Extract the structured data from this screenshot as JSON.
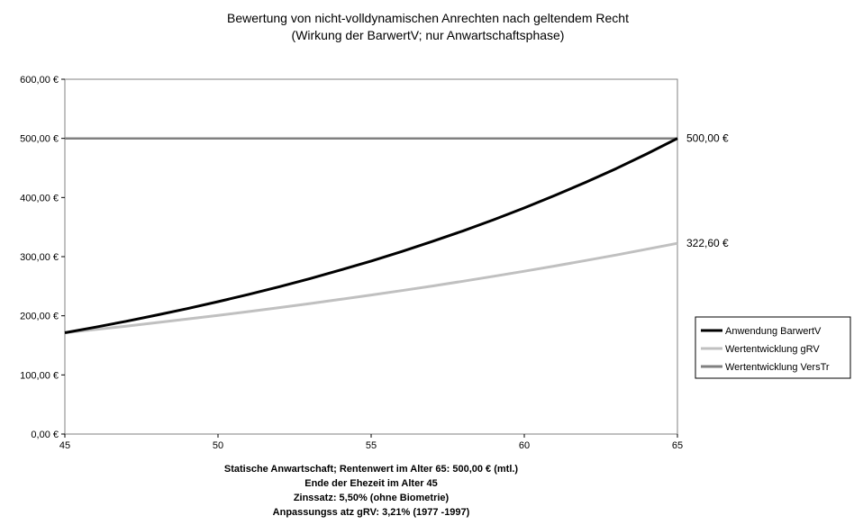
{
  "chart_data": {
    "type": "line",
    "title": "Bewertung von nicht-volldynamischen Anrechten nach geltendem Recht",
    "subtitle": "(Wirkung der BarwertV; nur Anwartschaftsphase)",
    "xlabel_lines": [
      "Statische Anwartschaft; Rentenwert im Alter 65: 500,00 € (mtl.)",
      "Ende der Ehezeit im Alter 45",
      "Zinssatz: 5,50% (ohne Biometrie)",
      "Anpassungss atz gRV: 3,21% (1977 -1997)"
    ],
    "xlim": [
      45,
      65
    ],
    "ylim": [
      0,
      600
    ],
    "x_ticks": [
      45,
      50,
      55,
      60,
      65
    ],
    "x_tick_labels": [
      "45",
      "50",
      "55",
      "60",
      "65"
    ],
    "y_ticks": [
      0,
      100,
      200,
      300,
      400,
      500,
      600
    ],
    "y_tick_labels": [
      "0,00 €",
      "100,00 €",
      "200,00 €",
      "300,00 €",
      "400,00 €",
      "500,00 €",
      "600,00 €"
    ],
    "grid": false,
    "legend_position": "right",
    "x": [
      45,
      46,
      47,
      48,
      49,
      50,
      51,
      52,
      53,
      54,
      55,
      56,
      57,
      58,
      59,
      60,
      61,
      62,
      63,
      64,
      65
    ],
    "series": [
      {
        "name": "Anwendung BarwertV",
        "color": "#000000",
        "values": [
          171.3,
          180.7,
          190.7,
          201.2,
          212.2,
          223.9,
          236.2,
          249.2,
          262.9,
          277.4,
          292.6,
          308.7,
          325.7,
          343.6,
          362.5,
          382.4,
          403.5,
          425.6,
          449.0,
          473.7,
          500.0
        ]
      },
      {
        "name": "Wertentwicklung gRV",
        "color": "#c0c0c0",
        "values": [
          171.3,
          176.8,
          182.5,
          188.4,
          194.4,
          200.7,
          207.1,
          213.8,
          220.7,
          227.8,
          235.1,
          242.6,
          250.4,
          258.5,
          266.8,
          275.4,
          284.2,
          293.4,
          302.8,
          312.6,
          322.6
        ]
      },
      {
        "name": "Wertentwicklung VersTr",
        "color": "#808080",
        "values": [
          500,
          500,
          500,
          500,
          500,
          500,
          500,
          500,
          500,
          500,
          500,
          500,
          500,
          500,
          500,
          500,
          500,
          500,
          500,
          500,
          500
        ]
      }
    ],
    "end_labels": [
      "500,00 €",
      "322,60 €"
    ]
  }
}
